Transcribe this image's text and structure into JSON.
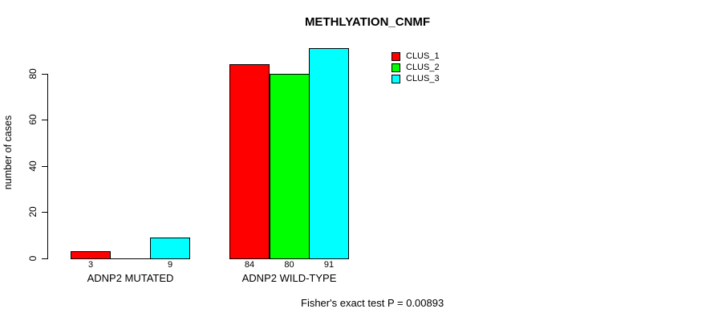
{
  "chart_data": {
    "type": "bar",
    "title": "METHLYATION_CNMF",
    "xlabel": "",
    "ylabel": "number of cases",
    "categories": [
      "ADNP2 MUTATED",
      "ADNP2 WILD-TYPE"
    ],
    "series": [
      {
        "name": "CLUS_1",
        "color": "#ff0000",
        "values": [
          3,
          84
        ]
      },
      {
        "name": "CLUS_2",
        "color": "#00ff00",
        "values": [
          0,
          80
        ]
      },
      {
        "name": "CLUS_3",
        "color": "#00ffff",
        "values": [
          9,
          91
        ]
      }
    ],
    "bar_value_labels": [
      [
        "3",
        "",
        "9"
      ],
      [
        "84",
        "80",
        "91"
      ]
    ],
    "yticks": [
      0,
      20,
      40,
      60,
      80
    ],
    "ylim": [
      0,
      91
    ],
    "grid": false,
    "bar_border_color": "#000000",
    "legend_position": "top-right",
    "annotation": "Fisher's exact test P = 0.00893"
  }
}
